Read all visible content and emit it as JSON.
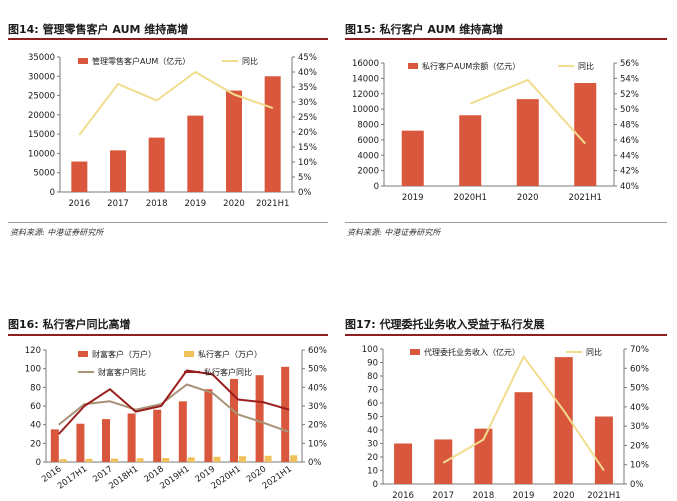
{
  "colors": {
    "bar": "#d9573c",
    "bar_light": "#f0c15a",
    "line_light": "#f2dc8e",
    "line_dark": "#9b1e1e",
    "line_brown": "#a89277",
    "rule": "#8c1f1f"
  },
  "fig14": {
    "number": "图14:",
    "title": "管理零售客户 AUM 维持高增"
  },
  "fig15": {
    "number": "图15:",
    "title": "私行客户 AUM 维持高增"
  },
  "fig16": {
    "number": "图16:",
    "title": "私行客户同比高增"
  },
  "fig17": {
    "number": "图17:",
    "title": "代理委托业务收入受益于私行发展"
  },
  "source_top_left": "资料来源: 中港证券研究所",
  "source_top_right": "资料来源: 中港证券研究所",
  "chart_data": [
    {
      "id": "fig14",
      "type": "bar",
      "categories": [
        "2016",
        "2017",
        "2018",
        "2019",
        "2020",
        "2021H1"
      ],
      "series": [
        {
          "name": "管理零售客户AUM（亿元）",
          "type": "bar",
          "axis": "left",
          "values": [
            7900,
            10800,
            14100,
            19800,
            26300,
            30000
          ]
        },
        {
          "name": "同比",
          "type": "line",
          "axis": "right",
          "values": [
            19,
            36,
            30.5,
            40,
            32.5,
            28
          ]
        }
      ],
      "left_ticks": [
        "0",
        "5000",
        "10000",
        "15000",
        "20000",
        "25000",
        "30000",
        "35000"
      ],
      "right_ticks": [
        "0%",
        "5%",
        "10%",
        "15%",
        "20%",
        "25%",
        "30%",
        "35%",
        "40%",
        "45%"
      ],
      "ylim_left": [
        0,
        35000
      ],
      "ylim_right": [
        0,
        45
      ],
      "legend": "top"
    },
    {
      "id": "fig15",
      "type": "bar",
      "categories": [
        "2019",
        "2020H1",
        "2020",
        "2021H1"
      ],
      "series": [
        {
          "name": "私行客户AUM余额（亿元）",
          "type": "bar",
          "axis": "left",
          "values": [
            7200,
            9200,
            11300,
            13400
          ]
        },
        {
          "name": "同比",
          "type": "line",
          "axis": "right",
          "values": [
            null,
            50.7,
            53.8,
            45.5
          ]
        }
      ],
      "left_ticks": [
        "0",
        "2000",
        "4000",
        "6000",
        "8000",
        "10000",
        "12000",
        "14000",
        "16000"
      ],
      "right_ticks": [
        "40%",
        "42%",
        "44%",
        "46%",
        "48%",
        "50%",
        "52%",
        "54%",
        "56%"
      ],
      "ylim_left": [
        0,
        16000
      ],
      "ylim_right": [
        40,
        56
      ],
      "legend": "top"
    },
    {
      "id": "fig16",
      "type": "bar",
      "categories": [
        "2016",
        "2017H1",
        "2017",
        "2018H1",
        "2018",
        "2019H1",
        "2019",
        "2020H1",
        "2020",
        "2021H1"
      ],
      "series": [
        {
          "name": "财富客户（万户）",
          "type": "bar",
          "axis": "left",
          "values": [
            35,
            41,
            46,
            52,
            56,
            65,
            78,
            89,
            93,
            102
          ]
        },
        {
          "name": "私行客户（万户）",
          "type": "bar",
          "axis": "left",
          "values": [
            3,
            3.4,
            3.6,
            4,
            4.3,
            5,
            5.6,
            6.2,
            6.6,
            7.2
          ]
        },
        {
          "name": "财富客户同比",
          "type": "line",
          "axis": "right",
          "values": [
            20,
            31,
            32.5,
            28,
            31,
            41.5,
            37,
            25.5,
            21,
            16
          ]
        },
        {
          "name": "私行客户同比",
          "type": "line",
          "axis": "right",
          "values": [
            15,
            30,
            39,
            27,
            30,
            49,
            47,
            33.5,
            32,
            28
          ]
        }
      ],
      "left_ticks": [
        "0",
        "20",
        "40",
        "60",
        "80",
        "100",
        "120"
      ],
      "right_ticks": [
        "0%",
        "10%",
        "20%",
        "30%",
        "40%",
        "50%",
        "60%"
      ],
      "ylim_left": [
        0,
        120
      ],
      "ylim_right": [
        0,
        60
      ],
      "legend": "top"
    },
    {
      "id": "fig17",
      "type": "bar",
      "categories": [
        "2016",
        "2017",
        "2018",
        "2019",
        "2020",
        "2021H1"
      ],
      "series": [
        {
          "name": "代理委托业务收入（亿元）",
          "type": "bar",
          "axis": "left",
          "values": [
            30,
            33,
            41,
            68,
            94,
            50
          ]
        },
        {
          "name": "同比",
          "type": "line",
          "axis": "right",
          "values": [
            null,
            11,
            23,
            66,
            38,
            7
          ]
        }
      ],
      "left_ticks": [
        "0",
        "10",
        "20",
        "30",
        "40",
        "50",
        "60",
        "70",
        "80",
        "90",
        "100"
      ],
      "right_ticks": [
        "0%",
        "10%",
        "20%",
        "30%",
        "40%",
        "50%",
        "60%",
        "70%"
      ],
      "ylim_left": [
        0,
        100
      ],
      "ylim_right": [
        0,
        70
      ],
      "legend": "top"
    }
  ]
}
